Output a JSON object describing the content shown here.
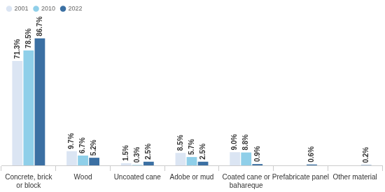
{
  "chart_data": {
    "type": "bar",
    "categories": [
      "Concrete, brick or block",
      "Wood",
      "Uncoated cane",
      "Adobe or mud",
      "Coated cane or bahareque",
      "Prefabricate panel",
      "Other material"
    ],
    "series": [
      {
        "name": "2001",
        "color": "#dbe5f3",
        "values": [
          71.3,
          9.7,
          1.5,
          8.5,
          9.0,
          null,
          null
        ],
        "value_labels": [
          "71.3%",
          "9.7%",
          "1.5%",
          "8.5%",
          "9.0%",
          null,
          null
        ]
      },
      {
        "name": "2010",
        "color": "#8fcfe9",
        "values": [
          78.5,
          6.7,
          0.3,
          5.7,
          8.8,
          null,
          null
        ],
        "value_labels": [
          "78.5%",
          "6.7%",
          "0.3%",
          "5.7%",
          "8.8%",
          null,
          null
        ]
      },
      {
        "name": "2022",
        "color": "#3b70a3",
        "values": [
          86.7,
          5.2,
          2.5,
          2.5,
          0.9,
          0.6,
          0.2
        ],
        "value_labels": [
          "86.7%",
          "5.2%",
          "2.5%",
          "2.5%",
          "0.9%",
          "0.6%",
          "0.2%"
        ]
      }
    ],
    "ylim": [
      0,
      100
    ],
    "grid": false,
    "legend": "top-left",
    "data_labels": true,
    "tick_labels": "x"
  }
}
